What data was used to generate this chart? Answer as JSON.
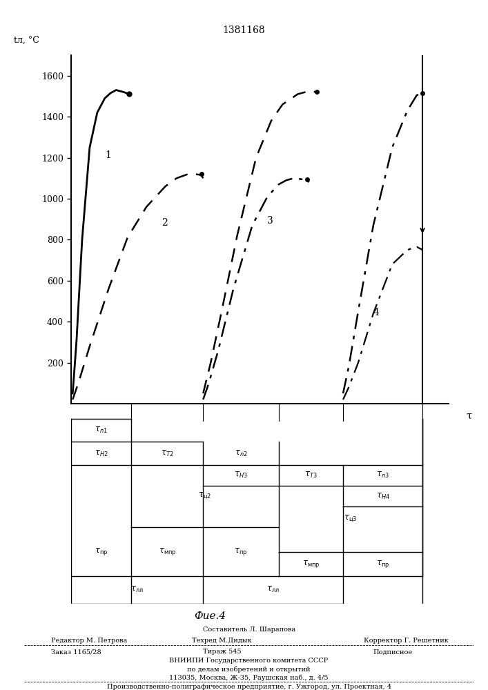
{
  "title": "1381168",
  "fig_label": "Фие.4",
  "ylabel": "tл, °С",
  "xlabel": "τ",
  "yticks": [
    200,
    400,
    600,
    800,
    1000,
    1200,
    1400,
    1600
  ],
  "ymax": 1700,
  "background": "#ffffff",
  "footer": {
    "line1": "Составитель Л. Шарапова",
    "editor": "Редактор М. Петрова",
    "tehred": "Техред М.Дидык",
    "corrector": "Корректор Г. Решетник",
    "order": "Заказ 1165/28",
    "tirazh": "Тираж 545",
    "podpisnoe": "Подписное",
    "org1": "ВНИИПИ Государственного комитета СССР",
    "org2": "по делам изобретений и открытий",
    "org3": "113035, Москва, Ж-35, Раушская наб., д. 4/5",
    "printer": "Производственно-полиграфическое предприятие, г. Ужгород, ул. Проектная, 4"
  }
}
